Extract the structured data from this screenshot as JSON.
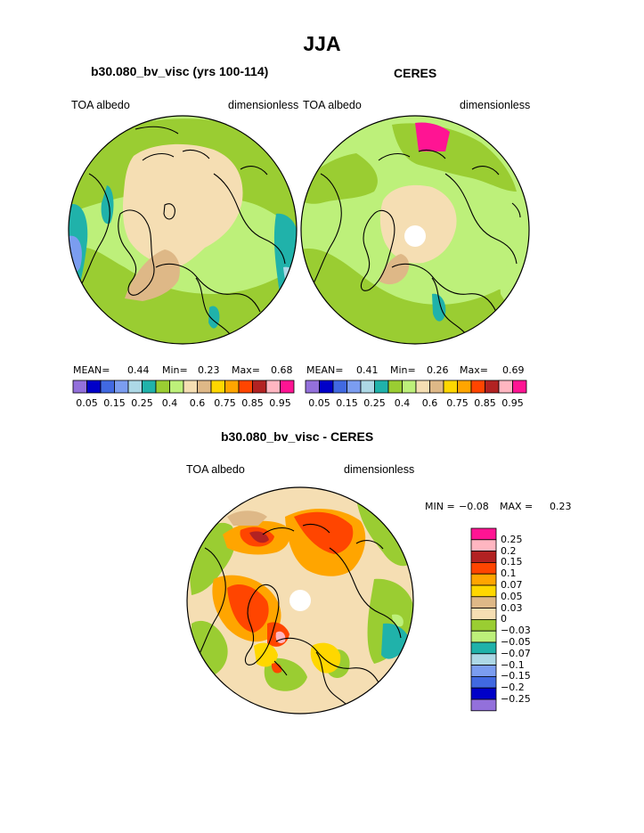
{
  "figure": {
    "title": "JJA"
  },
  "panels": [
    {
      "title": "b30.080_bv_visc (yrs 100-114)",
      "left_label": "TOA albedo",
      "right_label": "dimensionless",
      "stats": {
        "mean_label": "MEAN=",
        "mean": "0.44",
        "min_label": "Min=",
        "min": "0.23",
        "max_label": "Max=",
        "max": "0.68"
      }
    },
    {
      "title": "CERES",
      "left_label": "TOA albedo",
      "right_label": "dimensionless",
      "stats": {
        "mean_label": "MEAN=",
        "mean": "0.41",
        "min_label": "Min=",
        "min": "0.26",
        "max_label": "Max=",
        "max": "0.69"
      }
    },
    {
      "title": "b30.080_bv_visc - CERES",
      "left_label": "TOA albedo",
      "right_label": "dimensionless",
      "stats": {
        "min_label": "MIN =",
        "min": "−0.08",
        "max_label": "MAX =",
        "max": "0.23"
      }
    }
  ],
  "colorbar_horizontal": {
    "colors": [
      "#9370db",
      "#0000c8",
      "#4169e1",
      "#7b9df0",
      "#add8e6",
      "#20b2aa",
      "#9acd32",
      "#bdf07a",
      "#f5deb3",
      "#deb887",
      "#ffd700",
      "#ffa500",
      "#ff4500",
      "#b22222",
      "#ffb6c1",
      "#ff1493"
    ],
    "labels": [
      "0.05",
      "0.15",
      "0.25",
      "0.4",
      "0.6",
      "0.75",
      "0.85",
      "0.95"
    ]
  },
  "colorbar_vertical": {
    "colors": [
      "#ff1493",
      "#ffb6c1",
      "#b22222",
      "#ff4500",
      "#ffa500",
      "#ffd700",
      "#deb887",
      "#f5deb3",
      "#9acd32",
      "#bdf07a",
      "#20b2aa",
      "#add8e6",
      "#7b9df0",
      "#4169e1",
      "#0000c8",
      "#9370db"
    ],
    "labels": [
      "0.25",
      "0.2",
      "0.15",
      "0.1",
      "0.07",
      "0.05",
      "0.03",
      "0",
      "−0.03",
      "−0.05",
      "−0.07",
      "−0.1",
      "−0.15",
      "−0.2",
      "−0.25"
    ]
  }
}
